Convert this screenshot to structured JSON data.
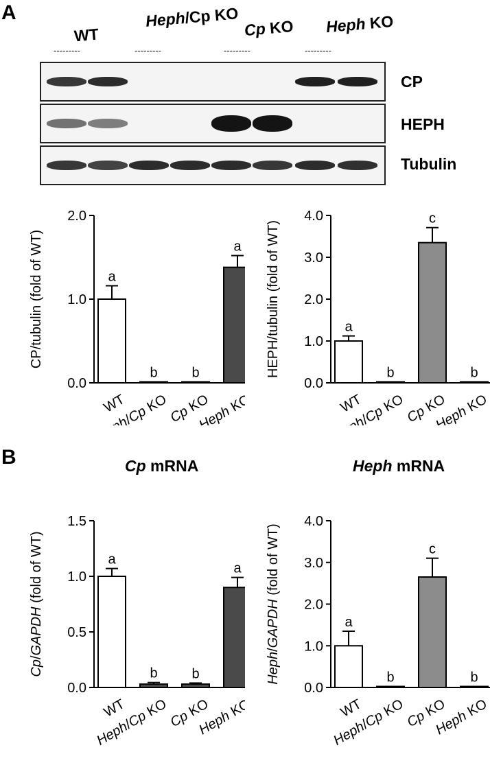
{
  "panels": {
    "a": "A",
    "b": "B"
  },
  "blot": {
    "groups": [
      {
        "pre": "WT",
        "ital": "",
        "post": ""
      },
      {
        "pre": "",
        "ital": "Heph",
        "post": "/Cp KO"
      },
      {
        "pre": "",
        "ital": "Cp",
        "post": " KO"
      },
      {
        "pre": "",
        "ital": "Heph",
        "post": " KO"
      }
    ],
    "dash": "---------",
    "rows": [
      "CP",
      "HEPH",
      "Tubulin"
    ],
    "band_intensity": {
      "CP": [
        0.85,
        0.9,
        0,
        0,
        0,
        0,
        0.95,
        0.95
      ],
      "HEPH": [
        0.6,
        0.55,
        0,
        0,
        1,
        1,
        0,
        0
      ],
      "Tubulin": [
        0.85,
        0.8,
        0.9,
        0.9,
        0.9,
        0.85,
        0.9,
        0.88
      ]
    }
  },
  "chart_titles": {
    "c": {
      "ital": "Cp",
      "rest": " mRNA"
    },
    "d": {
      "ital": "Heph",
      "rest": " mRNA"
    }
  },
  "chart_data": [
    {
      "type": "bar",
      "categories": [
        "WT",
        "Heph/Cp KO",
        "Cp KO",
        "Heph KO"
      ],
      "values": [
        1.0,
        0.01,
        0.01,
        1.38
      ],
      "errors": [
        0.16,
        0,
        0,
        0.14
      ],
      "letters": [
        "a",
        "b",
        "b",
        "a"
      ],
      "colors": [
        "#ffffff",
        "#ffffff",
        "#ffffff",
        "#4a4a4a"
      ],
      "ylabel": "CP/tubulin (fold of WT)",
      "ylim": [
        0,
        2.0
      ],
      "yticks": [
        "0.0",
        "1.0",
        "2.0"
      ]
    },
    {
      "type": "bar",
      "categories": [
        "WT",
        "Heph/Cp KO",
        "Cp KO",
        "Heph KO"
      ],
      "values": [
        1.0,
        0.02,
        3.35,
        0.02
      ],
      "errors": [
        0.12,
        0,
        0.36,
        0
      ],
      "letters": [
        "a",
        "b",
        "c",
        "b"
      ],
      "colors": [
        "#ffffff",
        "#ffffff",
        "#8c8c8c",
        "#ffffff"
      ],
      "ylabel": "HEPH/tubulin (fold of WT)",
      "ylim": [
        0,
        4.0
      ],
      "yticks": [
        "0.0",
        "1.0",
        "2.0",
        "3.0",
        "4.0"
      ]
    },
    {
      "type": "bar",
      "categories": [
        "WT",
        "Heph/Cp KO",
        "Cp KO",
        "Heph KO"
      ],
      "values": [
        1.0,
        0.03,
        0.03,
        0.9
      ],
      "errors": [
        0.07,
        0.015,
        0.01,
        0.09
      ],
      "letters": [
        "a",
        "b",
        "b",
        "a"
      ],
      "colors": [
        "#ffffff",
        "#4a4a4a",
        "#4a4a4a",
        "#4a4a4a"
      ],
      "ylabel": "Cp/GAPDH (fold of WT)",
      "ylim": [
        0,
        1.5
      ],
      "yticks": [
        "0.0",
        "0.5",
        "1.0",
        "1.5"
      ]
    },
    {
      "type": "bar",
      "categories": [
        "WT",
        "Heph/Cp KO",
        "Cp KO",
        "Heph KO"
      ],
      "values": [
        1.0,
        0.0,
        2.65,
        0.0
      ],
      "errors": [
        0.35,
        0,
        0.45,
        0
      ],
      "letters": [
        "a",
        "b",
        "c",
        "b"
      ],
      "colors": [
        "#ffffff",
        "#ffffff",
        "#8c8c8c",
        "#ffffff"
      ],
      "ylabel": "Heph/GAPDH (fold of WT)",
      "ylim": [
        0,
        4.0
      ],
      "yticks": [
        "0.0",
        "1.0",
        "2.0",
        "3.0",
        "4.0"
      ]
    }
  ]
}
